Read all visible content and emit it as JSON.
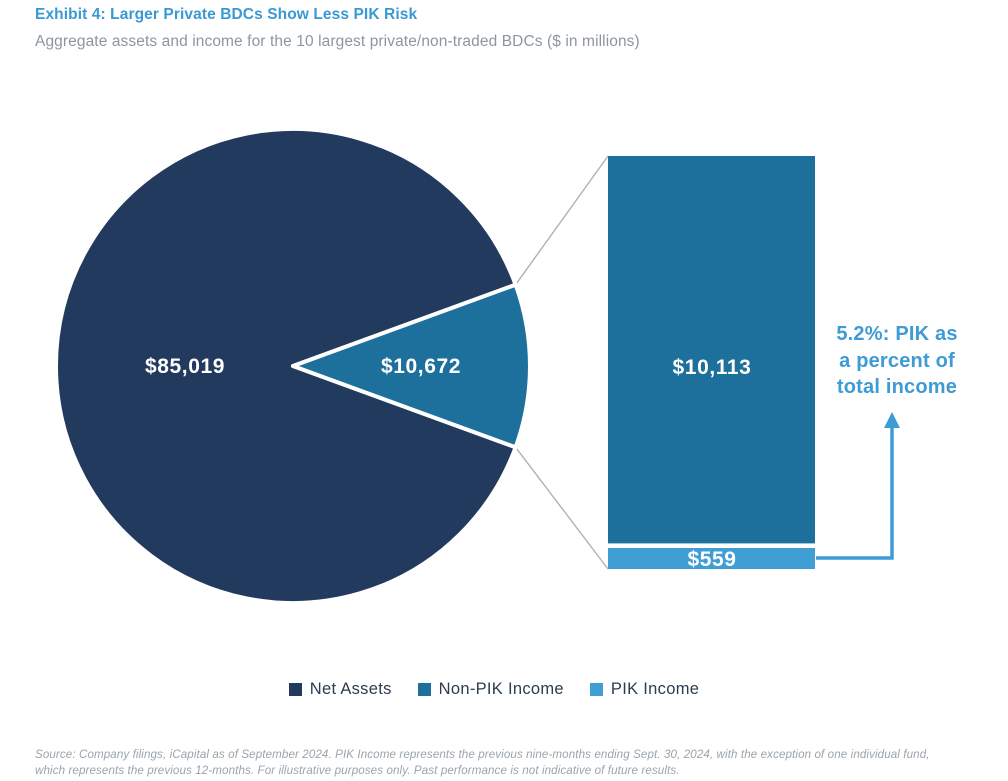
{
  "header": {
    "title": "Exhibit 4: Larger Private BDCs Show Less PIK Risk",
    "title_color": "#3999D5",
    "subtitle": "Aggregate assets and income for the 10 largest private/non-traded BDCs ($ in millions)"
  },
  "chart_data": {
    "type": "pie",
    "title": "Exhibit 4: Larger Private BDCs Show Less PIK Risk",
    "subtitle": "Aggregate assets and income for the 10 largest private/non-traded BDCs",
    "units": "$ in millions",
    "legend_position": "bottom",
    "pie": {
      "segments": [
        {
          "name": "Net Assets",
          "value": 85019,
          "label": "$85,019",
          "color": "#233A5F"
        },
        {
          "name": "Total Income (breakout)",
          "value": 10672,
          "label": "$10,672",
          "color": "#1D6F9C"
        }
      ]
    },
    "breakout_bar": {
      "segments": [
        {
          "name": "Non-PIK Income",
          "value": 10113,
          "label": "$10,113",
          "color": "#1D6F9C"
        },
        {
          "name": "PIK Income",
          "value": 559,
          "label": "$559",
          "color": "#3F9FD4"
        }
      ]
    },
    "annotation": {
      "lines": [
        "5.2%: PIK as",
        "a percent of",
        "total income"
      ],
      "value_pct": 5.2,
      "color": "#3E9BD5"
    },
    "connector_color": "#A9B3BB"
  },
  "legend": {
    "items": [
      {
        "label": "Net Assets",
        "color": "#233A5F"
      },
      {
        "label": "Non-PIK Income",
        "color": "#1D6F9C"
      },
      {
        "label": "PIK Income",
        "color": "#3F9FD4"
      }
    ]
  },
  "footer": {
    "lines": [
      "Source: Company filings, iCapital as of September 2024. PIK Income represents the previous nine-months ending Sept. 30, 2024, with the exception of one individual fund,",
      "which represents the previous 12-months. For illustrative purposes only. Past performance is not indicative of future results."
    ]
  }
}
